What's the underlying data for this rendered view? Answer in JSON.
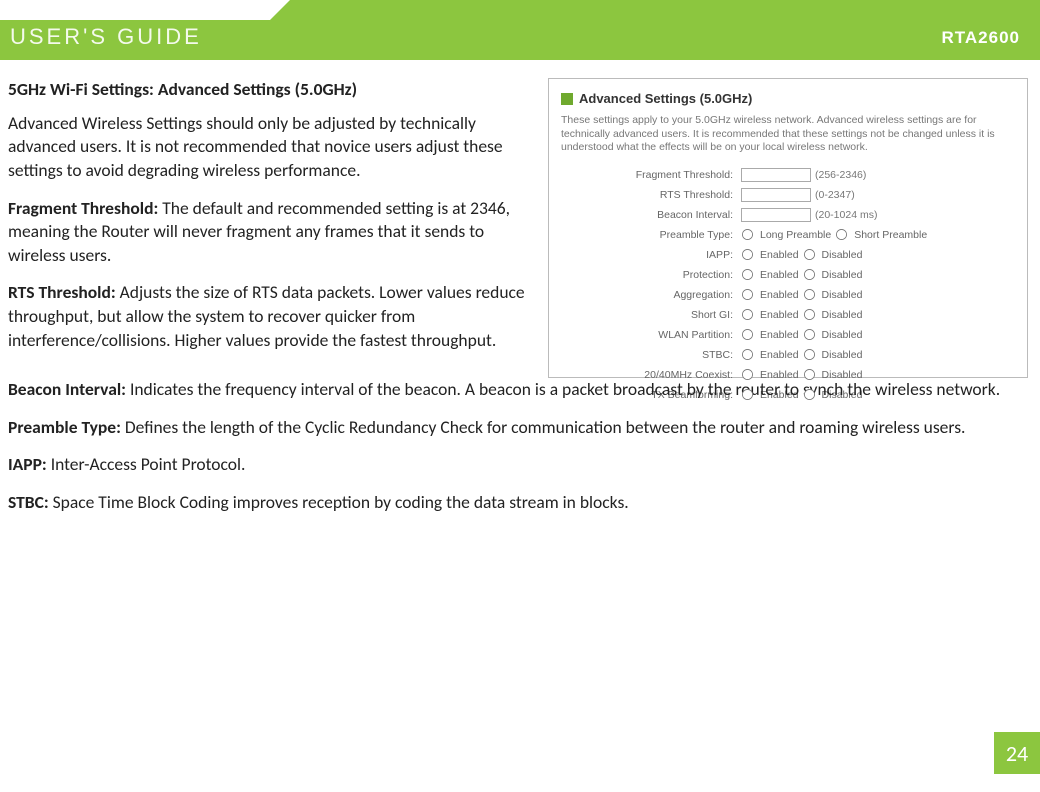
{
  "header": {
    "guide_title": "USER'S GUIDE",
    "model": "RTA2600"
  },
  "page_number": "24",
  "doc": {
    "title": "5GHz Wi-Fi Settings: Advanced Settings (5.0GHz)",
    "intro": "Advanced Wireless Settings should only be adjusted by technically advanced users. It is not recommended that novice users adjust these settings to avoid degrading wireless performance.",
    "frag_label": "Fragment Threshold:",
    "frag_text": " The default and recommended setting is at 2346, meaning the Router will never fragment any frames that it sends to wireless users.",
    "rts_label": "RTS Threshold:",
    "rts_text": " Adjusts the size of RTS data packets. Lower values reduce throughput, but allow the system to recover quicker from interference/collisions. Higher values provide the fastest throughput.",
    "beacon_label": "Beacon Interval:",
    "beacon_text": " Indicates the frequency interval of the beacon. A beacon is a packet broadcast by the router to synch the wireless network.",
    "preamble_label": "Preamble Type:",
    "preamble_text": " Defines the length of the Cyclic Redundancy Check for communication between the router and roaming wireless users.",
    "iapp_label": "IAPP:",
    "iapp_text": " Inter-Access Point Protocol.",
    "stbc_label": "STBC:",
    "stbc_text": " Space Time Block Coding improves reception by coding the data stream in blocks."
  },
  "panel": {
    "title": "Advanced Settings (5.0GHz)",
    "desc": "These settings apply to your 5.0GHz wireless network. Advanced wireless settings are for technically advanced users. It is recommended that these settings not be changed unless it is understood what the effects will be on your local wireless network.",
    "frag_lbl": "Fragment Threshold:",
    "frag_hint": "(256-2346)",
    "rts_lbl": "RTS Threshold:",
    "rts_hint": "(0-2347)",
    "beacon_lbl": "Beacon Interval:",
    "beacon_hint": "(20-1024 ms)",
    "preamble_lbl": "Preamble Type:",
    "preamble_opt1": "Long Preamble",
    "preamble_opt2": "Short Preamble",
    "enabled": "Enabled",
    "disabled": "Disabled",
    "iapp_lbl": "IAPP:",
    "protection_lbl": "Protection:",
    "aggregation_lbl": "Aggregation:",
    "shortgi_lbl": "Short GI:",
    "wlan_lbl": "WLAN Partition:",
    "stbc_lbl": "STBC:",
    "coexist_lbl": "20/40MHz Coexist:",
    "txbf_lbl": "TX Beamforming:"
  }
}
